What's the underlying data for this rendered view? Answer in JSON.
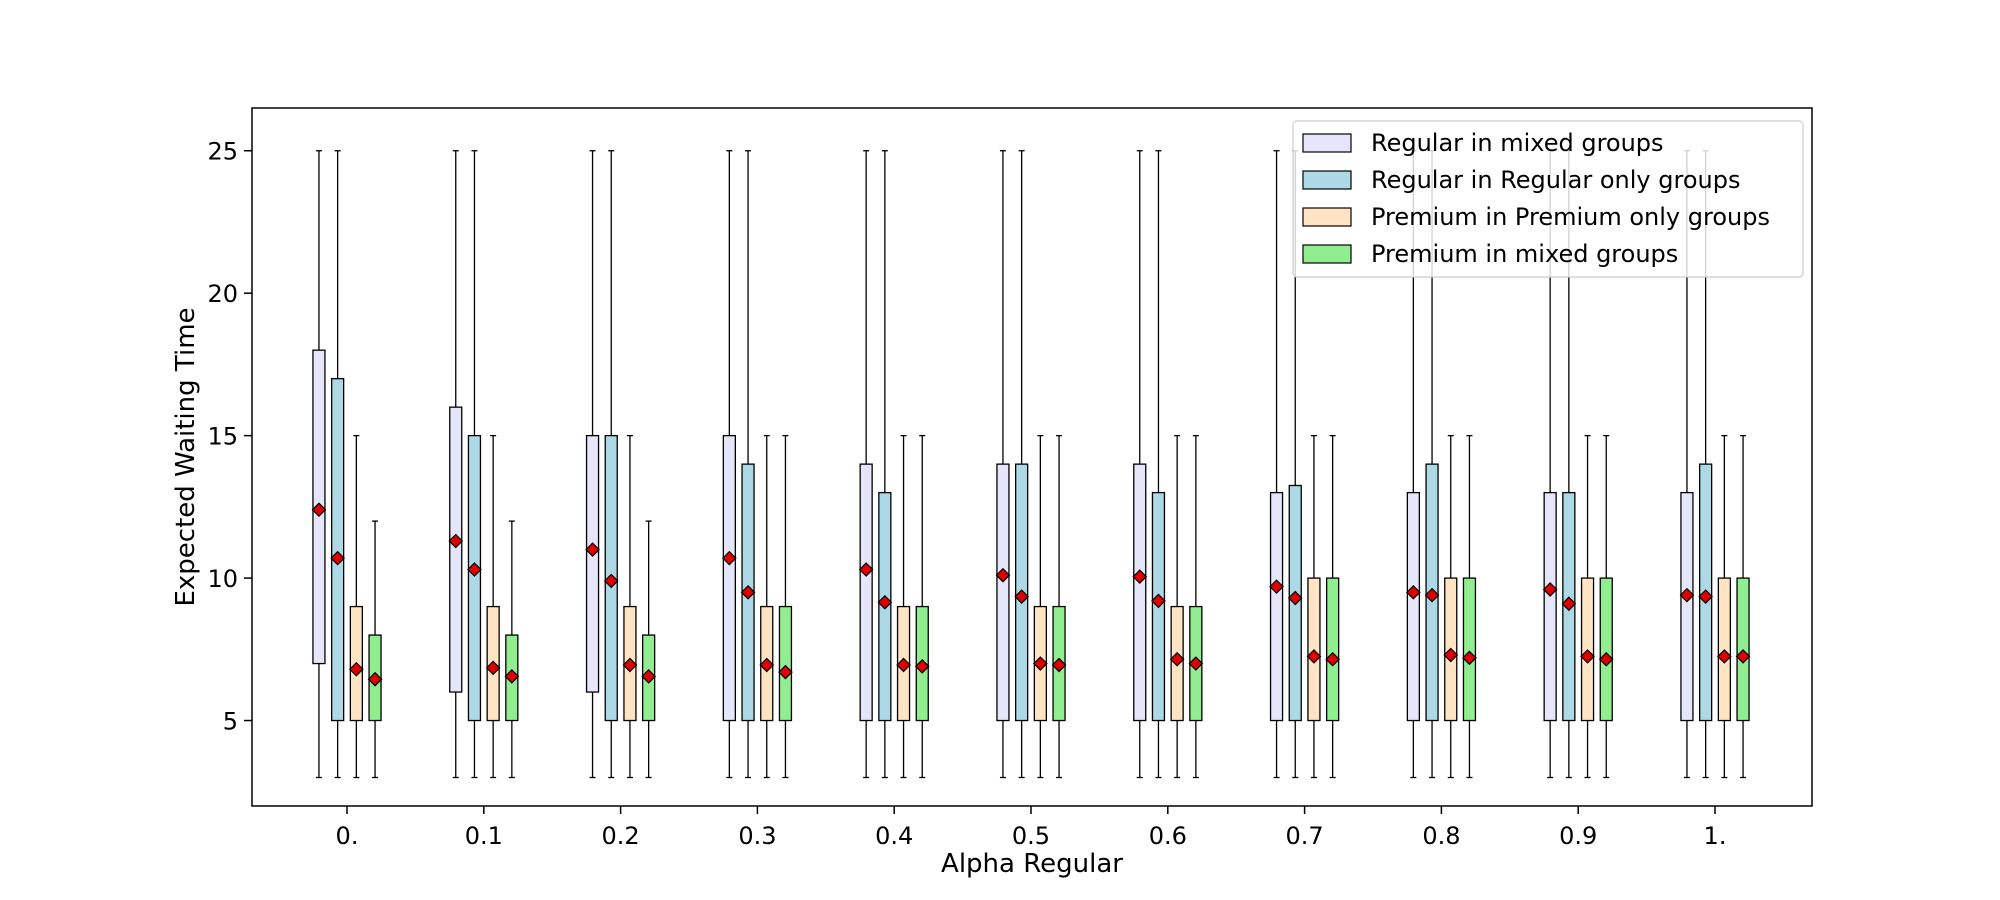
{
  "chart_data": {
    "type": "boxplot",
    "title": "",
    "xlabel": "Alpha Regular",
    "ylabel": "Expected Waiting Time",
    "ylim": [
      2,
      26.5
    ],
    "yticks": [
      5,
      10,
      15,
      20,
      25
    ],
    "categories": [
      "0.",
      "0.1",
      "0.2",
      "0.3",
      "0.4",
      "0.5",
      "0.6",
      "0.7",
      "0.8",
      "0.9",
      "1."
    ],
    "legend_position": "top-right",
    "mean_marker": {
      "shape": "diamond",
      "color": "#dd0000"
    },
    "series": [
      {
        "name": "Regular in mixed groups",
        "color": "#e6e6fa",
        "whisker_low": [
          3,
          3,
          3,
          3,
          3,
          3,
          3,
          3,
          3,
          3,
          3
        ],
        "q1": [
          7,
          6,
          6,
          5,
          5,
          5,
          5,
          5,
          5,
          5,
          5
        ],
        "q3": [
          18,
          16,
          15,
          15,
          14,
          14,
          14,
          13,
          13,
          13,
          13
        ],
        "whisker_high": [
          25,
          25,
          25,
          25,
          25,
          25,
          25,
          25,
          25,
          25,
          25
        ],
        "mean": [
          12.4,
          11.3,
          11.0,
          10.7,
          10.3,
          10.1,
          10.05,
          9.7,
          9.5,
          9.6,
          9.4
        ]
      },
      {
        "name": "Regular in Regular only groups",
        "color": "#add8e6",
        "whisker_low": [
          3,
          3,
          3,
          3,
          3,
          3,
          3,
          3,
          3,
          3,
          3
        ],
        "q1": [
          5,
          5,
          5,
          5,
          5,
          5,
          5,
          5,
          5,
          5,
          5
        ],
        "q3": [
          17,
          15,
          15,
          14,
          13,
          14,
          13,
          13.25,
          14,
          13,
          14
        ],
        "whisker_high": [
          25,
          25,
          25,
          25,
          25,
          25,
          25,
          25,
          25,
          25,
          25
        ],
        "mean": [
          10.7,
          10.3,
          9.9,
          9.5,
          9.15,
          9.35,
          9.2,
          9.3,
          9.4,
          9.1,
          9.35
        ]
      },
      {
        "name": "Premium in Premium only groups",
        "color": "#ffe4c4",
        "whisker_low": [
          3,
          3,
          3,
          3,
          3,
          3,
          3,
          3,
          3,
          3,
          3
        ],
        "q1": [
          5,
          5,
          5,
          5,
          5,
          5,
          5,
          5,
          5,
          5,
          5
        ],
        "q3": [
          9,
          9,
          9,
          9,
          9,
          9,
          9,
          10,
          10,
          10,
          10
        ],
        "whisker_high": [
          15,
          15,
          15,
          15,
          15,
          15,
          15,
          15,
          15,
          15,
          15
        ],
        "mean": [
          6.8,
          6.85,
          6.95,
          6.95,
          6.95,
          7.0,
          7.15,
          7.25,
          7.3,
          7.25,
          7.25
        ]
      },
      {
        "name": "Premium in mixed groups",
        "color": "#90ee90",
        "whisker_low": [
          3,
          3,
          3,
          3,
          3,
          3,
          3,
          3,
          3,
          3,
          3
        ],
        "q1": [
          5,
          5,
          5,
          5,
          5,
          5,
          5,
          5,
          5,
          5,
          5
        ],
        "q3": [
          8,
          8,
          8,
          9,
          9,
          9,
          9,
          10,
          10,
          10,
          10
        ],
        "whisker_high": [
          12,
          12,
          12,
          15,
          15,
          15,
          15,
          15,
          15,
          15,
          15
        ],
        "mean": [
          6.45,
          6.55,
          6.55,
          6.7,
          6.9,
          6.95,
          7.0,
          7.15,
          7.2,
          7.15,
          7.25
        ]
      }
    ]
  }
}
